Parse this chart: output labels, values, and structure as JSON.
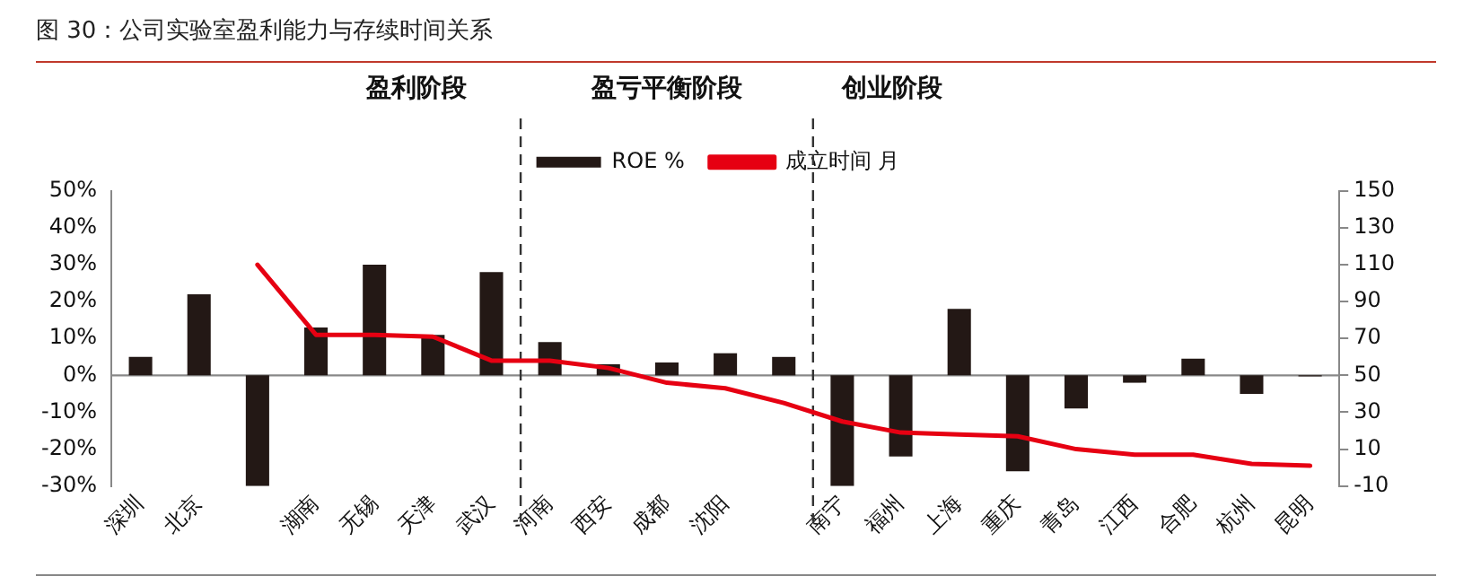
{
  "chart_data": {
    "type": "bar",
    "title": "图 30：公司实验室盈利能力与存续时间关系",
    "categories": [
      "深圳",
      "北京",
      null,
      "湖南",
      "无锡",
      "天津",
      "武汉",
      "河南",
      "西安",
      "成都",
      "沈阳",
      null,
      "南宁",
      "福州",
      "上海",
      "重庆",
      "青岛",
      "江西",
      "合肥",
      "杭州",
      "昆明"
    ],
    "series": [
      {
        "name": "ROE %",
        "color": "#231815",
        "values": [
          5,
          22,
          -30,
          13,
          30,
          11,
          28,
          9,
          3,
          3.5,
          6,
          5,
          -30,
          -22,
          18,
          -26,
          -9,
          -2,
          4.5,
          -5,
          -0.3
        ]
      },
      {
        "name": "成立时间 月",
        "type": "line",
        "axis": "y2",
        "color": "#e60012",
        "values": [
          null,
          null,
          110,
          72,
          72,
          71,
          58,
          58,
          54,
          46,
          43,
          35,
          25,
          19,
          18,
          17,
          10,
          7,
          7,
          2,
          1
        ]
      }
    ],
    "ylim": [
      -30,
      50
    ],
    "yticks": [
      {
        "value": -30,
        "label": "-30%"
      },
      {
        "value": -20,
        "label": "-20%"
      },
      {
        "value": -10,
        "label": "-10%"
      },
      {
        "value": 0,
        "label": "0%"
      },
      {
        "value": 10,
        "label": "10%"
      },
      {
        "value": 20,
        "label": "20%"
      },
      {
        "value": 30,
        "label": "30%"
      },
      {
        "value": 40,
        "label": "40%"
      },
      {
        "value": 50,
        "label": "50%"
      }
    ],
    "y2lim": [
      -10,
      150
    ],
    "y2ticks": [
      -10,
      10,
      30,
      50,
      70,
      90,
      110,
      130,
      150
    ],
    "ref_lines": [
      {
        "axis": "y",
        "value": 0,
        "color": "#888888",
        "line_style": "solid"
      },
      {
        "axis": "x",
        "value": "河南",
        "line_style": "dashed"
      },
      {
        "axis": "x",
        "value": "南宁",
        "line_style": "dashed"
      }
    ],
    "annotations": [
      "盈利阶段",
      "盈亏平衡阶段",
      "创业阶段"
    ],
    "grid": false,
    "legend": "top",
    "marker": "none",
    "line_style": "solid"
  }
}
